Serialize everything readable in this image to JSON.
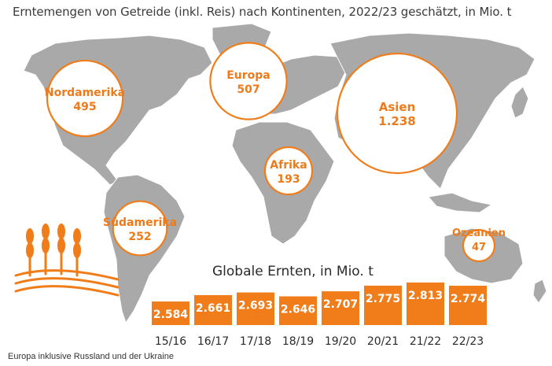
{
  "title": "Erntemengen von Getreide (inkl. Reis) nach Kontinenten, 2022/23 geschätzt, in Mio. t",
  "footnote": "Europa inklusive Russland und der Ukraine",
  "colors": {
    "accent": "#f07d1a",
    "map": "#a9a9a9",
    "bubble_fill": "#ffffff",
    "text": "#2a2a2a"
  },
  "chart_data": [
    {
      "type": "bubble-map",
      "title": "Erntemengen von Getreide (inkl. Reis) nach Kontinenten, 2022/23 geschätzt, in Mio. t",
      "unit": "Mio. t",
      "regions": [
        {
          "name": "Nordamerika",
          "value": 495,
          "value_label": "495"
        },
        {
          "name": "Europa",
          "value": 507,
          "value_label": "507"
        },
        {
          "name": "Asien",
          "value": 1238,
          "value_label": "1.238"
        },
        {
          "name": "Afrika",
          "value": 193,
          "value_label": "193"
        },
        {
          "name": "Südamerika",
          "value": 252,
          "value_label": "252"
        },
        {
          "name": "Ozeanien",
          "value": 47,
          "value_label": "47"
        }
      ]
    },
    {
      "type": "bar",
      "title": "Globale Ernten, in Mio. t",
      "categories": [
        "15/16",
        "16/17",
        "17/18",
        "18/19",
        "19/20",
        "20/21",
        "21/22",
        "22/23"
      ],
      "values": [
        2584,
        2661,
        2693,
        2646,
        2707,
        2775,
        2813,
        2774
      ],
      "value_labels": [
        "2.584",
        "2.661",
        "2.693",
        "2.646",
        "2.707",
        "2.775",
        "2.813",
        "2.774"
      ]
    }
  ]
}
